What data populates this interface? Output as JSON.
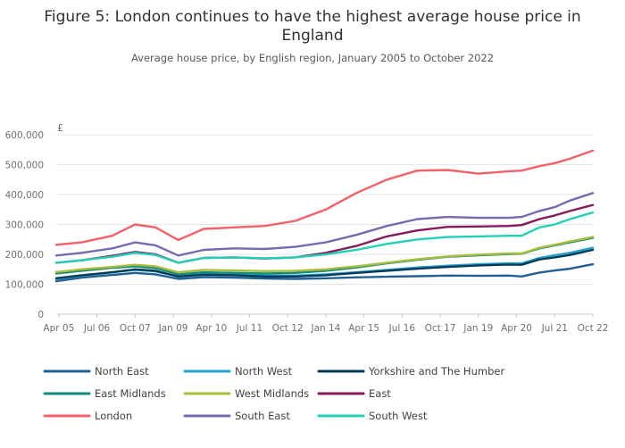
{
  "chart_data": {
    "type": "line",
    "title": "Figure 5: London continues to have the highest average house price in England",
    "subtitle": "Average house price, by English region, January 2005 to October 2022",
    "ylabel": "£",
    "xlabel": "",
    "ylim": [
      0,
      600000
    ],
    "xlim": [
      "2005-03",
      "2022-10"
    ],
    "yticks": [
      0,
      100000,
      200000,
      300000,
      400000,
      500000,
      600000
    ],
    "ytick_labels": [
      "0",
      "100,000",
      "200,000",
      "300,000",
      "400,000",
      "500,000",
      "600,000"
    ],
    "xticks": [
      "2005-04",
      "2006-07",
      "2007-10",
      "2009-01",
      "2010-04",
      "2011-07",
      "2012-10",
      "2014-01",
      "2015-04",
      "2016-07",
      "2017-10",
      "2019-01",
      "2020-04",
      "2021-07",
      "2022-10"
    ],
    "xtick_labels": [
      "Apr 05",
      "Jul 06",
      "Oct 07",
      "Jan 09",
      "Apr 10",
      "Jul 11",
      "Oct 12",
      "Jan 14",
      "Apr 15",
      "Jul 16",
      "Oct 17",
      "Jan 19",
      "Apr 20",
      "Jul 21",
      "Oct 22"
    ],
    "grid": true,
    "legend_position": "bottom",
    "series": [
      {
        "name": "North East",
        "color": "#206095",
        "x": [
          "2005-03",
          "2006-01",
          "2007-01",
          "2007-10",
          "2008-06",
          "2009-03",
          "2010-01",
          "2011-01",
          "2012-01",
          "2013-01",
          "2014-01",
          "2015-01",
          "2016-01",
          "2017-01",
          "2018-01",
          "2019-01",
          "2020-01",
          "2020-06",
          "2021-01",
          "2021-07",
          "2022-01",
          "2022-10"
        ],
        "y": [
          110000,
          122000,
          131000,
          138000,
          133000,
          118000,
          124000,
          122000,
          119000,
          118000,
          120000,
          123000,
          125000,
          127000,
          129000,
          128000,
          129000,
          126000,
          139000,
          146000,
          152000,
          167000
        ]
      },
      {
        "name": "North West",
        "color": "#27a0cc",
        "x": [
          "2005-03",
          "2006-01",
          "2007-01",
          "2007-10",
          "2008-06",
          "2009-03",
          "2010-01",
          "2011-01",
          "2012-01",
          "2013-01",
          "2014-01",
          "2015-01",
          "2016-01",
          "2017-01",
          "2018-01",
          "2019-01",
          "2020-01",
          "2020-06",
          "2021-01",
          "2021-07",
          "2022-01",
          "2022-10"
        ],
        "y": [
          118000,
          128000,
          140000,
          148000,
          143000,
          126000,
          134000,
          132000,
          129000,
          129000,
          133000,
          140000,
          148000,
          156000,
          162000,
          167000,
          170000,
          170000,
          188000,
          197000,
          205000,
          222000
        ]
      },
      {
        "name": "Yorkshire and The Humber",
        "color": "#003c57",
        "x": [
          "2005-03",
          "2006-01",
          "2007-01",
          "2007-10",
          "2008-06",
          "2009-03",
          "2010-01",
          "2011-01",
          "2012-01",
          "2013-01",
          "2014-01",
          "2015-01",
          "2016-01",
          "2017-01",
          "2018-01",
          "2019-01",
          "2020-01",
          "2020-06",
          "2021-01",
          "2021-07",
          "2022-01",
          "2022-10"
        ],
        "y": [
          120000,
          130000,
          140000,
          150000,
          145000,
          126000,
          132000,
          130000,
          126000,
          126000,
          130000,
          138000,
          145000,
          152000,
          158000,
          163000,
          166000,
          165000,
          183000,
          190000,
          198000,
          215000
        ]
      },
      {
        "name": "East Midlands",
        "color": "#118c7b",
        "x": [
          "2005-03",
          "2006-01",
          "2007-01",
          "2007-10",
          "2008-06",
          "2009-03",
          "2010-01",
          "2011-01",
          "2012-01",
          "2013-01",
          "2014-01",
          "2015-01",
          "2016-01",
          "2017-01",
          "2018-01",
          "2019-01",
          "2020-01",
          "2020-06",
          "2021-01",
          "2021-07",
          "2022-01",
          "2022-10"
        ],
        "y": [
          136000,
          145000,
          155000,
          160000,
          154000,
          133000,
          140000,
          138000,
          136000,
          138000,
          145000,
          156000,
          170000,
          182000,
          192000,
          197000,
          201000,
          202000,
          220000,
          230000,
          240000,
          255000
        ]
      },
      {
        "name": "West Midlands",
        "color": "#a8bd3a",
        "x": [
          "2005-03",
          "2006-01",
          "2007-01",
          "2007-10",
          "2008-06",
          "2009-03",
          "2010-01",
          "2011-01",
          "2012-01",
          "2013-01",
          "2014-01",
          "2015-01",
          "2016-01",
          "2017-01",
          "2018-01",
          "2019-01",
          "2020-01",
          "2020-06",
          "2021-01",
          "2021-07",
          "2022-01",
          "2022-10"
        ],
        "y": [
          141000,
          150000,
          158000,
          165000,
          160000,
          140000,
          148000,
          146000,
          144000,
          145000,
          150000,
          160000,
          172000,
          184000,
          193000,
          199000,
          203000,
          203000,
          222000,
          232000,
          243000,
          258000
        ]
      },
      {
        "name": "East",
        "color": "#871a5b",
        "x": [
          "2005-03",
          "2006-01",
          "2007-01",
          "2007-10",
          "2008-06",
          "2009-03",
          "2010-01",
          "2011-01",
          "2012-01",
          "2013-01",
          "2014-01",
          "2015-01",
          "2016-01",
          "2017-01",
          "2018-01",
          "2019-01",
          "2020-01",
          "2020-06",
          "2021-01",
          "2021-07",
          "2022-01",
          "2022-10"
        ],
        "y": [
          172000,
          180000,
          195000,
          208000,
          200000,
          172000,
          188000,
          190000,
          186000,
          190000,
          205000,
          228000,
          260000,
          280000,
          292000,
          293000,
          295000,
          298000,
          318000,
          330000,
          345000,
          365000
        ]
      },
      {
        "name": "London",
        "color": "#f66068",
        "x": [
          "2005-03",
          "2006-01",
          "2007-01",
          "2007-10",
          "2008-06",
          "2009-03",
          "2010-01",
          "2011-01",
          "2012-01",
          "2013-01",
          "2014-01",
          "2015-01",
          "2016-01",
          "2017-01",
          "2018-01",
          "2019-01",
          "2020-01",
          "2020-06",
          "2021-01",
          "2021-07",
          "2022-01",
          "2022-10"
        ],
        "y": [
          232000,
          240000,
          262000,
          300000,
          290000,
          248000,
          285000,
          290000,
          295000,
          312000,
          350000,
          405000,
          450000,
          480000,
          482000,
          470000,
          478000,
          480000,
          495000,
          505000,
          520000,
          547000
        ]
      },
      {
        "name": "South East",
        "color": "#746cb1",
        "x": [
          "2005-03",
          "2006-01",
          "2007-01",
          "2007-10",
          "2008-06",
          "2009-03",
          "2010-01",
          "2011-01",
          "2012-01",
          "2013-01",
          "2014-01",
          "2015-01",
          "2016-01",
          "2017-01",
          "2018-01",
          "2019-01",
          "2020-01",
          "2020-06",
          "2021-01",
          "2021-07",
          "2022-01",
          "2022-10"
        ],
        "y": [
          196000,
          205000,
          220000,
          240000,
          230000,
          196000,
          215000,
          220000,
          218000,
          225000,
          240000,
          265000,
          295000,
          318000,
          325000,
          322000,
          322000,
          325000,
          345000,
          358000,
          380000,
          405000
        ]
      },
      {
        "name": "South West",
        "color": "#22d0b6",
        "x": [
          "2005-03",
          "2006-01",
          "2007-01",
          "2007-10",
          "2008-06",
          "2009-03",
          "2010-01",
          "2011-01",
          "2012-01",
          "2013-01",
          "2014-01",
          "2015-01",
          "2016-01",
          "2017-01",
          "2018-01",
          "2019-01",
          "2020-01",
          "2020-06",
          "2021-01",
          "2021-07",
          "2022-01",
          "2022-10"
        ],
        "y": [
          172000,
          180000,
          192000,
          205000,
          198000,
          172000,
          188000,
          190000,
          187000,
          190000,
          200000,
          215000,
          235000,
          250000,
          258000,
          260000,
          262000,
          262000,
          290000,
          300000,
          318000,
          340000
        ]
      }
    ]
  }
}
